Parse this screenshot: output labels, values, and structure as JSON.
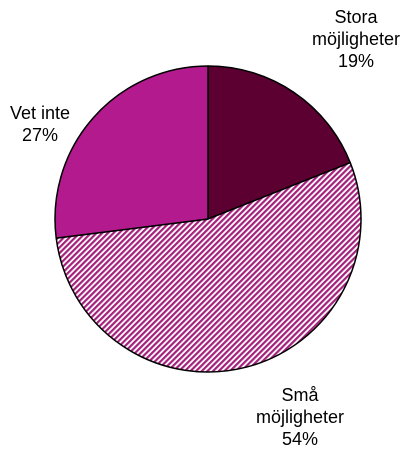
{
  "chart_data": {
    "type": "pie",
    "slices": [
      {
        "label_lines": [
          "Stora",
          "möjligheter"
        ],
        "value": 19,
        "value_label": "19%",
        "color": "#5c0032",
        "pattern": "solid"
      },
      {
        "label_lines": [
          "Små",
          "möjligheter"
        ],
        "value": 54,
        "value_label": "54%",
        "color": "#a3207c",
        "pattern": "diagonal-hatch"
      },
      {
        "label_lines": [
          "Vet inte"
        ],
        "value": 27,
        "value_label": "27%",
        "color": "#b21a8e",
        "pattern": "solid"
      }
    ],
    "start": "12 o'clock",
    "direction": "clockwise",
    "legend": "none"
  }
}
